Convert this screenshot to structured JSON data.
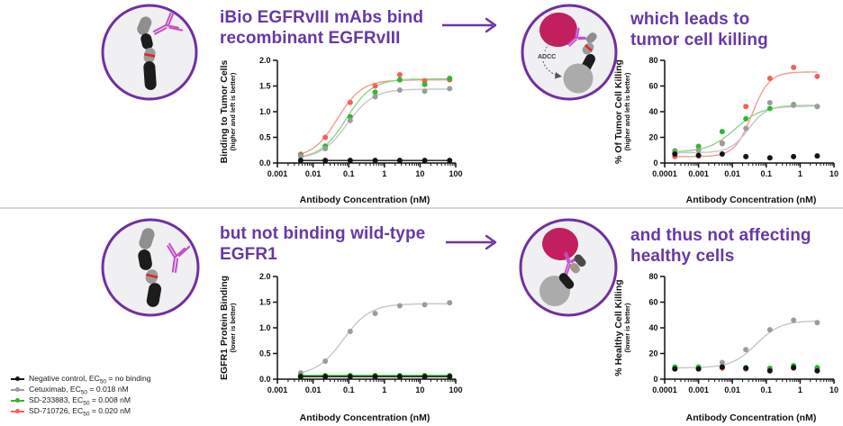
{
  "headings": {
    "top_left": {
      "line1": "iBio EGFRvIII mAbs bind",
      "line2": "recombinant EGFRvIII"
    },
    "top_right": {
      "line1": "which leads to",
      "line2": "tumor cell killing"
    },
    "bottom_left": {
      "line1": "but not binding wild-type",
      "line2": "EGFR1"
    },
    "bottom_right": {
      "line1": "and thus not affecting",
      "line2": "healthy cells"
    }
  },
  "icons": {
    "adcc_label": "ADCC"
  },
  "colors": {
    "heading_purple": "#6639a6",
    "arrow_purple": "#6a35a8",
    "circle_border": "#7030a0",
    "circle_fill": "#f0eff1",
    "tumor_cell_crimson": "#c21f5e",
    "antibody_magenta": "#c44fc8",
    "receptor_red_band": "#e02424",
    "series_black": "#141414",
    "series_gray": "#9c9c9c",
    "series_green": "#2eb82e",
    "series_red": "#f26157"
  },
  "legend": {
    "items": [
      {
        "prefix": "Negative control, EC",
        "sub": "50",
        "suffix": " = no binding",
        "color": "#141414"
      },
      {
        "prefix": "Cetuximab, EC",
        "sub": "50",
        "suffix": " = 0.018 nM",
        "color": "#9c9c9c"
      },
      {
        "prefix": "SD-233883, EC",
        "sub": "50",
        "suffix": " = 0.008 nM",
        "color": "#2eb82e"
      },
      {
        "prefix": "SD-710726, EC",
        "sub": "50",
        "suffix": " = 0.020 nM",
        "color": "#f26157"
      }
    ]
  },
  "chart_data": [
    {
      "type": "scatter",
      "ylabel": "Binding to Tumor Cells",
      "ylabel_sub": "(higher and left is better)",
      "xlabel": "Antibody Concentration (nM)",
      "xrange": [
        0.001,
        100
      ],
      "yrange": [
        0,
        2
      ],
      "xticks": [
        {
          "v": 0.001,
          "label": "0.001"
        },
        {
          "v": 0.01,
          "label": "0.01"
        },
        {
          "v": 0.1,
          "label": "0.1"
        },
        {
          "v": 1,
          "label": "1"
        },
        {
          "v": 10,
          "label": "10"
        },
        {
          "v": 100,
          "label": "100"
        }
      ],
      "yticks": [
        {
          "v": 0,
          "label": "0.0"
        },
        {
          "v": 0.5,
          "label": "0.5"
        },
        {
          "v": 1,
          "label": "1.0"
        },
        {
          "v": 1.5,
          "label": "1.5"
        },
        {
          "v": 2,
          "label": "2.0"
        }
      ],
      "x": [
        0.0045,
        0.022,
        0.11,
        0.55,
        2.7,
        13.5,
        67.5
      ],
      "series": [
        {
          "name": "SD-710726",
          "color": "#f26157",
          "line_color": "#f59a93",
          "values": [
            0.17,
            0.5,
            1.18,
            1.5,
            1.72,
            1.6,
            1.62
          ],
          "fit": {
            "bottom": 0.1,
            "top": 1.62,
            "ec50": 0.048,
            "hill": 1.25
          }
        },
        {
          "name": "SD-233883",
          "color": "#2eb82e",
          "line_color": "#8bd48b",
          "values": [
            0.15,
            0.33,
            0.9,
            1.38,
            1.62,
            1.53,
            1.65
          ],
          "fit": {
            "bottom": 0.08,
            "top": 1.64,
            "ec50": 0.085,
            "hill": 1.2
          }
        },
        {
          "name": "Cetuximab",
          "color": "#9c9c9c",
          "line_color": "#c6c6c6",
          "values": [
            0.13,
            0.28,
            0.83,
            1.29,
            1.42,
            1.4,
            1.45
          ],
          "fit": {
            "bottom": 0.08,
            "top": 1.44,
            "ec50": 0.09,
            "hill": 1.2
          }
        },
        {
          "name": "Negative control",
          "color": "#141414",
          "line_color": "#141414",
          "values": [
            0.05,
            0.05,
            0.05,
            0.05,
            0.05,
            0.05,
            0.05
          ],
          "fit": {
            "bottom": 0.05,
            "top": 0.05,
            "ec50": 1,
            "hill": 1
          }
        }
      ]
    },
    {
      "type": "scatter",
      "ylabel": "% Of Tumor Cell Killing",
      "ylabel_sub": "(higher and left is better)",
      "xlabel": "Antibody Concentration (nM)",
      "xrange": [
        0.0001,
        10
      ],
      "yrange": [
        0,
        80
      ],
      "xticks": [
        {
          "v": 0.0001,
          "label": "0.0001"
        },
        {
          "v": 0.001,
          "label": "0.001"
        },
        {
          "v": 0.01,
          "label": "0.01"
        },
        {
          "v": 0.1,
          "label": "0.1"
        },
        {
          "v": 1,
          "label": "1"
        },
        {
          "v": 10,
          "label": "10"
        }
      ],
      "yticks": [
        {
          "v": 0,
          "label": "0"
        },
        {
          "v": 20,
          "label": "20"
        },
        {
          "v": 40,
          "label": "40"
        },
        {
          "v": 60,
          "label": "60"
        },
        {
          "v": 80,
          "label": "80"
        }
      ],
      "x": [
        0.0002,
        0.001,
        0.005,
        0.025,
        0.128,
        0.64,
        3.2
      ],
      "series": [
        {
          "name": "SD-710726",
          "color": "#f26157",
          "line_color": "#f59a93",
          "values": [
            5,
            5.5,
            15.5,
            44,
            66,
            74.5,
            67.5
          ],
          "fit": {
            "bottom": 5,
            "top": 71,
            "ec50": 0.038,
            "hill": 1.7
          }
        },
        {
          "name": "SD-233883",
          "color": "#2eb82e",
          "line_color": "#8bd48b",
          "values": [
            9.5,
            13,
            24.5,
            34.5,
            42.5,
            45.5,
            44
          ],
          "fit": {
            "bottom": 8.5,
            "top": 44.5,
            "ec50": 0.012,
            "hill": 1.1
          }
        },
        {
          "name": "Cetuximab",
          "color": "#9c9c9c",
          "line_color": "#c6c6c6",
          "values": [
            8,
            10,
            15,
            27,
            47,
            45,
            44
          ],
          "fit": {
            "bottom": 8,
            "top": 45,
            "ec50": 0.03,
            "hill": 1.6
          }
        },
        {
          "name": "Negative control",
          "color": "#141414",
          "line_color": "#141414",
          "values": [
            7,
            6,
            7,
            5,
            4,
            5,
            5.5
          ],
          "fit": null
        }
      ]
    },
    {
      "type": "scatter",
      "ylabel": "EGFR1 Protein Binding",
      "ylabel_sub": "(lower is better)",
      "xlabel": "Antibody Concentration (nM)",
      "xrange": [
        0.001,
        100
      ],
      "yrange": [
        0,
        2
      ],
      "xticks": [
        {
          "v": 0.001,
          "label": "0.001"
        },
        {
          "v": 0.01,
          "label": "0.01"
        },
        {
          "v": 0.1,
          "label": "0.1"
        },
        {
          "v": 1,
          "label": "1"
        },
        {
          "v": 10,
          "label": "10"
        },
        {
          "v": 100,
          "label": "100"
        }
      ],
      "yticks": [
        {
          "v": 0,
          "label": "0.0"
        },
        {
          "v": 0.5,
          "label": "0.5"
        },
        {
          "v": 1,
          "label": "1.0"
        },
        {
          "v": 1.5,
          "label": "1.5"
        },
        {
          "v": 2,
          "label": "2.0"
        }
      ],
      "x": [
        0.0045,
        0.022,
        0.11,
        0.55,
        2.7,
        13.5,
        67.5
      ],
      "series": [
        {
          "name": "Cetuximab",
          "color": "#9c9c9c",
          "line_color": "#c6c6c6",
          "values": [
            0.12,
            0.35,
            0.93,
            1.28,
            1.43,
            1.45,
            1.49
          ],
          "fit": {
            "bottom": 0.07,
            "top": 1.47,
            "ec50": 0.07,
            "hill": 1.15
          }
        },
        {
          "name": "SD-710726",
          "color": "#f26157",
          "line_color": "#f59a93",
          "values": [
            0.05,
            0.05,
            0.05,
            0.05,
            0.05,
            0.05,
            0.05
          ],
          "fit": {
            "bottom": 0.05,
            "top": 0.05,
            "ec50": 1,
            "hill": 1
          }
        },
        {
          "name": "SD-233883",
          "color": "#2eb82e",
          "line_color": "#2eb82e",
          "values": [
            0.07,
            0.07,
            0.07,
            0.07,
            0.07,
            0.07,
            0.07
          ],
          "fit": {
            "bottom": 0.07,
            "top": 0.07,
            "ec50": 1,
            "hill": 1
          }
        },
        {
          "name": "Negative control",
          "color": "#141414",
          "line_color": "#141414",
          "values": [
            0.05,
            0.05,
            0.05,
            0.05,
            0.05,
            0.05,
            0.05
          ],
          "fit": {
            "bottom": 0.05,
            "top": 0.05,
            "ec50": 1,
            "hill": 1
          }
        }
      ]
    },
    {
      "type": "scatter",
      "ylabel": "% Healthy Cell Killing",
      "ylabel_sub": "(lower is better)",
      "xlabel": "Antibody Concentration (nM)",
      "xrange": [
        0.0001,
        10
      ],
      "yrange": [
        0,
        80
      ],
      "xticks": [
        {
          "v": 0.0001,
          "label": "0.0001"
        },
        {
          "v": 0.001,
          "label": "0.001"
        },
        {
          "v": 0.01,
          "label": "0.01"
        },
        {
          "v": 0.1,
          "label": "0.1"
        },
        {
          "v": 1,
          "label": "1"
        },
        {
          "v": 10,
          "label": "10"
        }
      ],
      "yticks": [
        {
          "v": 0,
          "label": "0"
        },
        {
          "v": 20,
          "label": "20"
        },
        {
          "v": 40,
          "label": "40"
        },
        {
          "v": 60,
          "label": "60"
        },
        {
          "v": 80,
          "label": "80"
        }
      ],
      "x": [
        0.0002,
        0.001,
        0.005,
        0.025,
        0.128,
        0.64,
        3.2
      ],
      "series": [
        {
          "name": "Cetuximab",
          "color": "#9c9c9c",
          "line_color": "#c6c6c6",
          "values": [
            9,
            9,
            13,
            23,
            38.5,
            46,
            44
          ],
          "fit": {
            "bottom": 8.8,
            "top": 45.5,
            "ec50": 0.05,
            "hill": 1.2
          }
        },
        {
          "name": "SD-710726",
          "color": "#f26157",
          "line_color": "#f26157",
          "values": [
            8,
            8,
            8.5,
            8,
            7.5,
            8.5,
            7.5
          ],
          "fit": null
        },
        {
          "name": "SD-233883",
          "color": "#2eb82e",
          "line_color": "#2eb82e",
          "values": [
            9.5,
            9.5,
            9.5,
            9,
            8.5,
            10.5,
            9
          ],
          "fit": null
        },
        {
          "name": "Negative control",
          "color": "#141414",
          "line_color": "#141414",
          "values": [
            8,
            8,
            9.5,
            8.5,
            6.5,
            9,
            6.5
          ],
          "fit": null
        }
      ]
    }
  ]
}
